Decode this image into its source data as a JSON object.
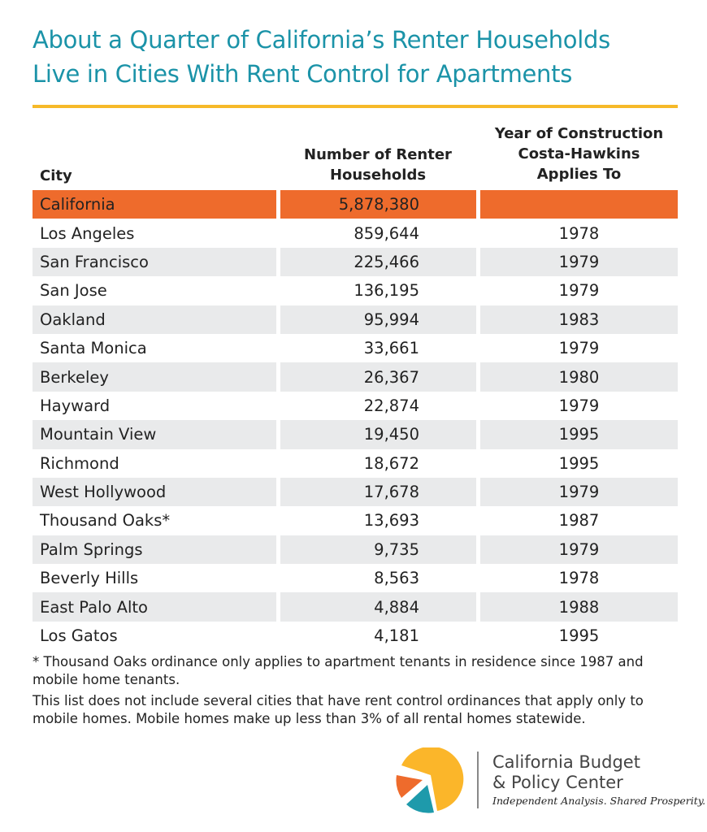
{
  "title_line1": "About a Quarter of California’s Renter Households",
  "title_line2": "Live in Cities With Rent Control for Apartments",
  "chart_data": {
    "type": "table",
    "title": "About a Quarter of California’s Renter Households Live in Cities With Rent Control for Apartments",
    "columns": [
      "City",
      "Number of Renter Households",
      "Year of Construction Costa-Hawkins Applies To"
    ],
    "header": {
      "city": "City",
      "households_1": "Number of Renter",
      "households_2": "Households",
      "year_1": "Year of Construction",
      "year_2": "Costa-Hawkins",
      "year_3": "Applies To"
    },
    "rows": [
      {
        "city": "California",
        "households": "5,878,380",
        "year": ""
      },
      {
        "city": "Los Angeles",
        "households": "859,644",
        "year": "1978"
      },
      {
        "city": "San Francisco",
        "households": "225,466",
        "year": "1979"
      },
      {
        "city": "San Jose",
        "households": "136,195",
        "year": "1979"
      },
      {
        "city": "Oakland",
        "households": "95,994",
        "year": "1983"
      },
      {
        "city": "Santa Monica",
        "households": "33,661",
        "year": "1979"
      },
      {
        "city": "Berkeley",
        "households": "26,367",
        "year": "1980"
      },
      {
        "city": "Hayward",
        "households": "22,874",
        "year": "1979"
      },
      {
        "city": "Mountain View",
        "households": "19,450",
        "year": "1995"
      },
      {
        "city": "Richmond",
        "households": "18,672",
        "year": "1995"
      },
      {
        "city": "West Hollywood",
        "households": "17,678",
        "year": "1979"
      },
      {
        "city": "Thousand Oaks*",
        "households": "13,693",
        "year": "1987"
      },
      {
        "city": "Palm Springs",
        "households": "9,735",
        "year": "1979"
      },
      {
        "city": "Beverly Hills",
        "households": "8,563",
        "year": "1978"
      },
      {
        "city": "East Palo Alto",
        "households": "4,884",
        "year": "1988"
      },
      {
        "city": "Los Gatos",
        "households": "4,181",
        "year": "1995"
      }
    ],
    "highlight_color": "#ee6b2c",
    "stripe_color": "#e9eaeb"
  },
  "notes": {
    "footnote": "* Thousand Oaks ordinance only applies to apartment tenants in residence since 1987 and mobile home tenants.",
    "note": "This list does not include several cities that have rent control ordinances that apply only to mobile homes. Mobile homes make up less than 3% of all rental homes statewide."
  },
  "logo": {
    "org_line1": "California Budget",
    "org_line2": "& Policy Center",
    "tagline": "Independent Analysis. Shared Prosperity.",
    "colors": {
      "yellow": "#fbb62a",
      "orange": "#ee6b2c",
      "teal": "#1e9aab"
    }
  },
  "colors": {
    "title": "#1b93a8",
    "rule": "#f6b928"
  }
}
